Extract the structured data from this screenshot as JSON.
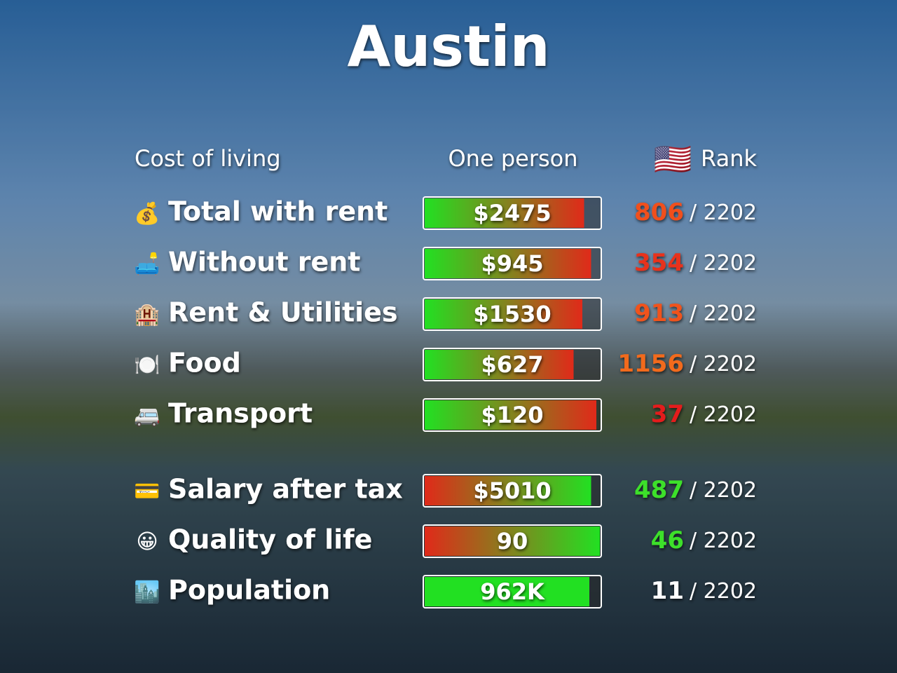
{
  "title": "Austin",
  "header": {
    "label": "Cost of living",
    "value": "One person",
    "flag": "🇺🇸",
    "rank": "Rank"
  },
  "costs": [
    {
      "icon": "💰",
      "label": "Total with rent",
      "value": "$2475",
      "fill": 91,
      "colors": [
        "#22e022",
        "#e02a1a"
      ],
      "rank": 806,
      "rank_color": "#f0501e",
      "total": "/ 2202"
    },
    {
      "icon": "🛋️",
      "label": "Without rent",
      "value": "$945",
      "fill": 95,
      "colors": [
        "#22e022",
        "#e02a1a"
      ],
      "rank": 354,
      "rank_color": "#e8301a",
      "total": "/ 2202"
    },
    {
      "icon": "🏨",
      "label": "Rent & Utilities",
      "value": "$1530",
      "fill": 90,
      "colors": [
        "#22e022",
        "#e02a1a"
      ],
      "rank": 913,
      "rank_color": "#f0521e",
      "total": "/ 2202"
    },
    {
      "icon": "🍽️",
      "label": "Food",
      "value": "$627",
      "fill": 85,
      "colors": [
        "#22e022",
        "#e02a1a"
      ],
      "rank": 1156,
      "rank_color": "#f26a1e",
      "total": "/ 2202"
    },
    {
      "icon": "🚐",
      "label": "Transport",
      "value": "$120",
      "fill": 98,
      "colors": [
        "#22e022",
        "#e02a1a"
      ],
      "rank": 37,
      "rank_color": "#e41e1e",
      "total": "/ 2202"
    }
  ],
  "stats": [
    {
      "icon": "💳",
      "label": "Salary after tax",
      "value": "$5010",
      "fill": 95,
      "colors": [
        "#e02a1a",
        "#22e022"
      ],
      "rank": 487,
      "rank_color": "#3ee02a",
      "total": "/ 2202"
    },
    {
      "icon": "😀",
      "label": "Quality of life",
      "value": "90",
      "fill": 100,
      "colors": [
        "#e02a1a",
        "#22e022"
      ],
      "rank": 46,
      "rank_color": "#3ee02a",
      "total": "/ 2202"
    },
    {
      "icon": "🏙️",
      "label": "Population",
      "value": "962K",
      "fill": 94,
      "colors": [
        "#22e022",
        "#22e022"
      ],
      "rank": 11,
      "rank_color": "#ffffff",
      "total": "/ 2202"
    }
  ]
}
